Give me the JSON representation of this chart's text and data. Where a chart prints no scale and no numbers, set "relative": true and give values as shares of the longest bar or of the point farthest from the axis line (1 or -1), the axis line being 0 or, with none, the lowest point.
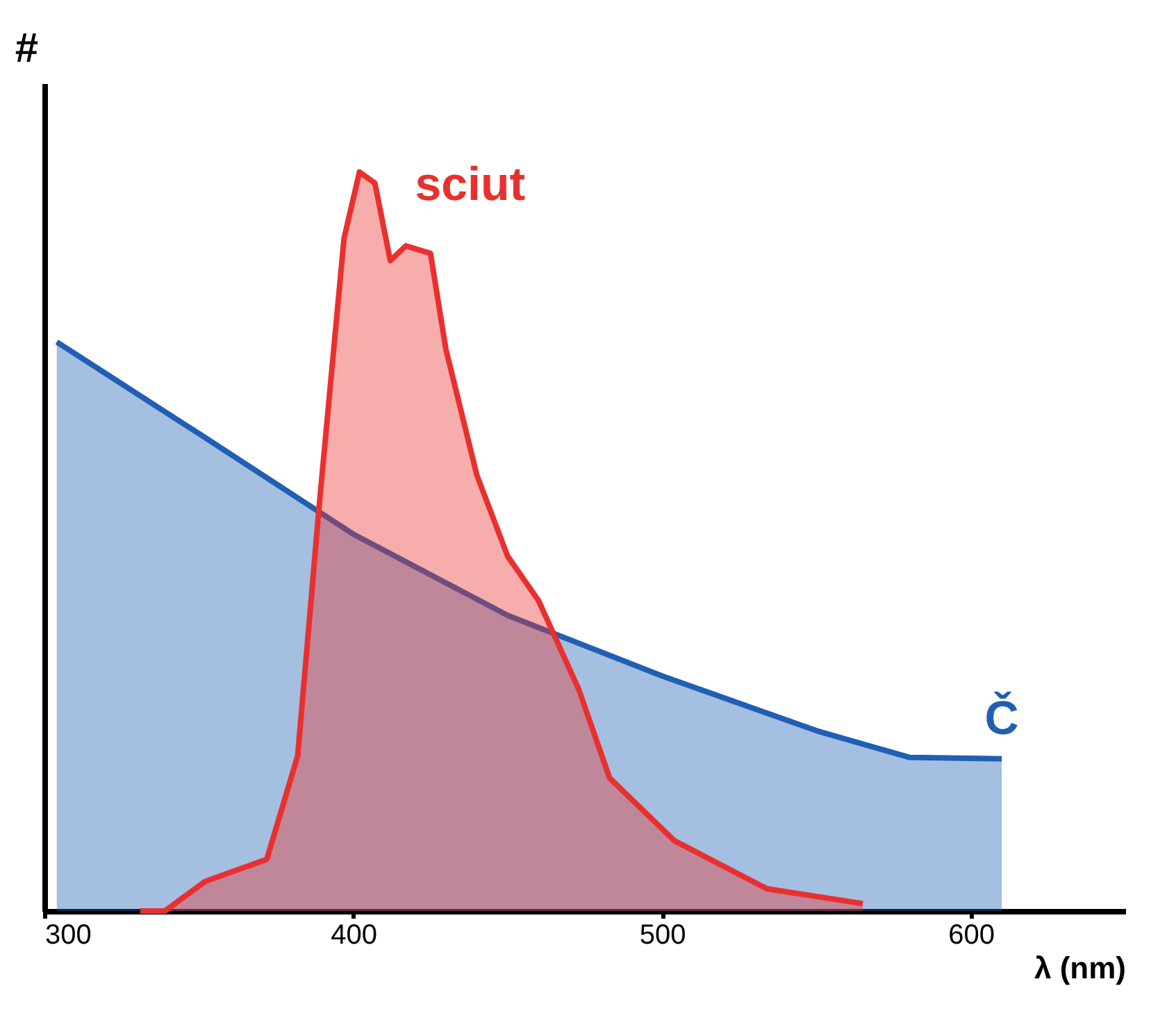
{
  "chart_data": {
    "type": "area",
    "relative": true,
    "xlabel": "λ (nm)",
    "ylabel": "#",
    "xlim": [
      300,
      650
    ],
    "xticks": [
      300,
      400,
      500,
      600
    ],
    "grid": false,
    "marker": "none",
    "line_style": "solid",
    "series": [
      {
        "name": "Č",
        "color": "#1f5fb4",
        "x": [
          304,
          350,
          400,
          450,
          500,
          550,
          580,
          610
        ],
        "values": [
          0.77,
          0.646,
          0.51,
          0.4,
          0.318,
          0.244,
          0.208,
          0.206
        ]
      },
      {
        "name": "sciut",
        "color": "#e8312f",
        "x": [
          331,
          339,
          352,
          372,
          382,
          389,
          397,
          402,
          407,
          412,
          417,
          425,
          430,
          440,
          450,
          460,
          473,
          483,
          504,
          534,
          565
        ],
        "values": [
          0,
          0,
          0.04,
          0.07,
          0.21,
          0.55,
          0.91,
          1.0,
          0.985,
          0.88,
          0.9,
          0.89,
          0.76,
          0.59,
          0.48,
          0.42,
          0.3,
          0.18,
          0.095,
          0.03,
          0.01
        ]
      }
    ]
  }
}
